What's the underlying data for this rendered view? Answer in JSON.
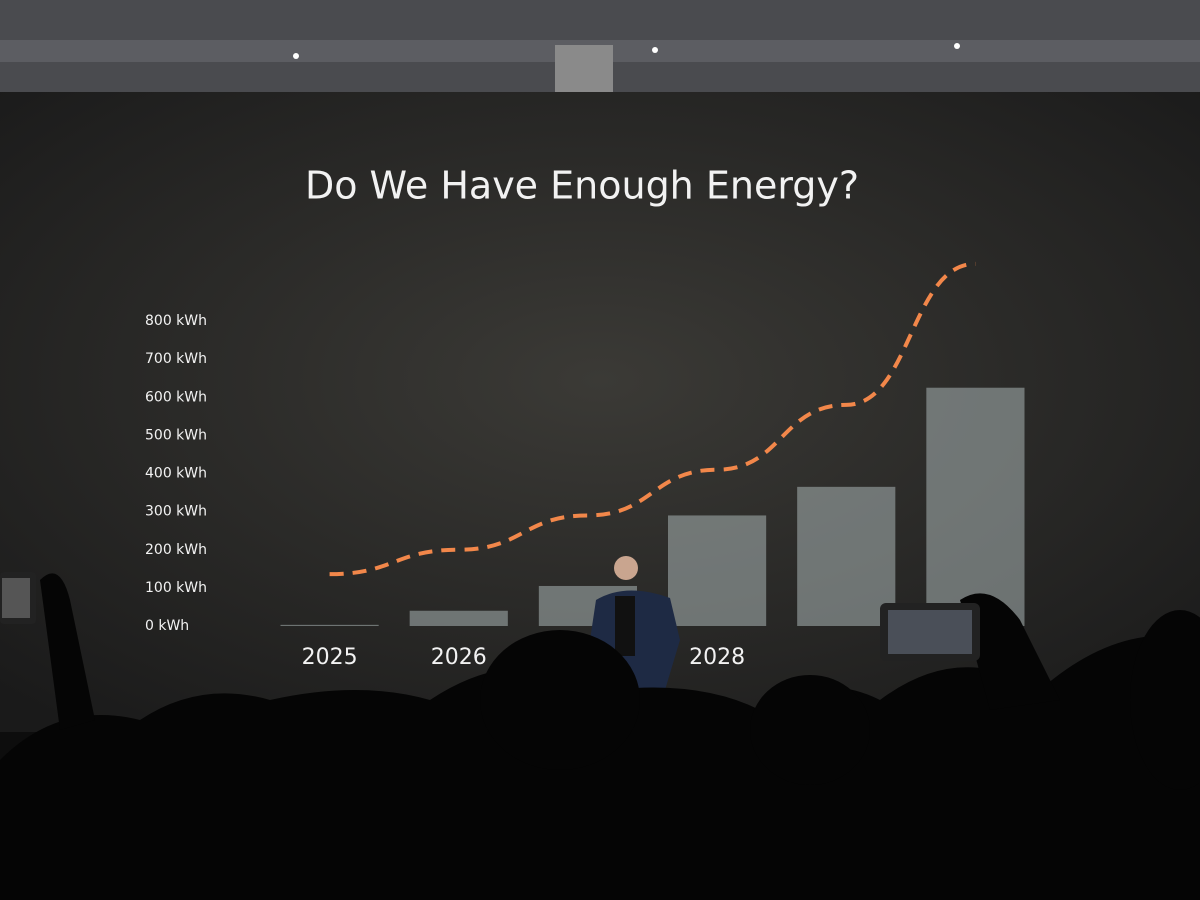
{
  "chart_data": {
    "type": "bar",
    "title": "Do We Have Enough Energy?",
    "categories": [
      "2025",
      "2026",
      null,
      "2028",
      null,
      null
    ],
    "values": [
      3,
      40,
      105,
      290,
      365,
      625
    ],
    "color": "#a9b5b4",
    "trend": {
      "values": [
        136,
        200,
        290,
        410,
        580,
        950
      ],
      "color": "#f2874a"
    },
    "ylim": [
      0,
      800
    ],
    "yticks": [
      {
        "value": 0,
        "label": "0 kWh"
      },
      {
        "value": 100,
        "label": "100 kWh"
      },
      {
        "value": 200,
        "label": "200 kWh"
      },
      {
        "value": 300,
        "label": "300 kWh"
      },
      {
        "value": 400,
        "label": "400 kWh"
      },
      {
        "value": 500,
        "label": "500 kWh"
      },
      {
        "value": 600,
        "label": "600 kWh"
      },
      {
        "value": 700,
        "label": "700 kWh"
      },
      {
        "value": 800,
        "label": "800 kWh"
      }
    ],
    "grid": false
  }
}
